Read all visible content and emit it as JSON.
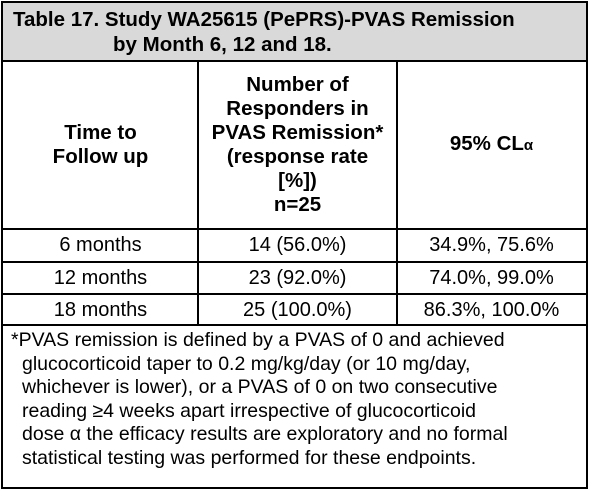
{
  "title": {
    "line1": "Table 17. Study WA25615 (PePRS)-PVAS Remission",
    "line2": "by Month 6, 12 and 18."
  },
  "headers": {
    "col1": [
      "Time to",
      "Follow up"
    ],
    "col2": [
      "Number of",
      "Responders in",
      "PVAS Remission*",
      "(response rate",
      "[%])",
      "n=25"
    ],
    "col3_main": "95% CL",
    "col3_sub": "α"
  },
  "rows": [
    {
      "time": "6 months",
      "responders": "14 (56.0%)",
      "ci": "34.9%, 75.6%"
    },
    {
      "time": "12 months",
      "responders": "23 (92.0%)",
      "ci": "74.0%, 99.0%"
    },
    {
      "time": "18 months",
      "responders": "25 (100.0%)",
      "ci": "86.3%, 100.0%"
    }
  ],
  "footnote": {
    "line1": "*PVAS remission is defined by a PVAS of 0 and achieved",
    "line2": "glucocorticoid taper to 0.2 mg/kg/day (or 10 mg/day,",
    "line3": "whichever is lower), or a PVAS of 0 on two consecutive",
    "line4": "reading ≥4 weeks apart irrespective of glucocorticoid",
    "line5": "dose α the efficacy results are exploratory and no formal",
    "line6": "statistical testing was performed for these endpoints."
  }
}
